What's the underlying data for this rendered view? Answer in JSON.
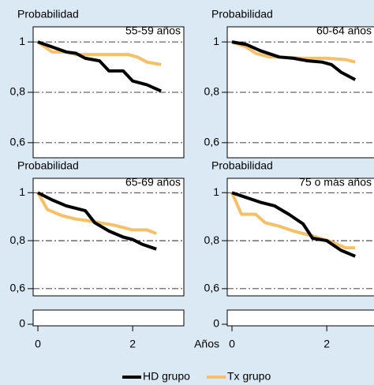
{
  "chart_data": [
    {
      "type": "line",
      "title": "Probabilidad",
      "subtitle": "55-59 años",
      "xlim": [
        -0.1,
        3.08
      ],
      "ylim": [
        0.54,
        1.06
      ],
      "yticks": [
        {
          "value": 0.6,
          "label": "0,6"
        },
        {
          "value": 0.8,
          "label": "0,8"
        },
        1
      ],
      "grid": true,
      "series": [
        {
          "name": "HD grupo",
          "color": "#000000",
          "x": [
            0,
            0.3,
            0.6,
            0.8,
            1,
            1.3,
            1.5,
            1.8,
            2,
            2.3,
            2.6
          ],
          "values": [
            1,
            0.98,
            0.96,
            0.955,
            0.935,
            0.925,
            0.885,
            0.885,
            0.845,
            0.83,
            0.805
          ]
        },
        {
          "name": "Tx grupo",
          "color": "#f5c06a",
          "x": [
            0,
            0.3,
            0.6,
            0.8,
            1,
            1.5,
            1.9,
            2.1,
            2.3,
            2.6
          ],
          "values": [
            1,
            0.96,
            0.96,
            0.95,
            0.95,
            0.95,
            0.95,
            0.94,
            0.92,
            0.91
          ]
        }
      ]
    },
    {
      "type": "line",
      "title": "Probabilidad",
      "subtitle": "60-64 años",
      "xlim": [
        -0.1,
        3.08
      ],
      "ylim": [
        0.54,
        1.06
      ],
      "yticks": [
        {
          "value": 0.6,
          "label": "0,6"
        },
        {
          "value": 0.8,
          "label": "0,8"
        },
        1
      ],
      "grid": true,
      "series": [
        {
          "name": "HD grupo",
          "color": "#000000",
          "x": [
            0,
            0.3,
            0.6,
            1,
            1.3,
            1.6,
            1.9,
            2.1,
            2.3,
            2.6
          ],
          "values": [
            1,
            0.99,
            0.965,
            0.94,
            0.935,
            0.925,
            0.92,
            0.91,
            0.88,
            0.85
          ]
        },
        {
          "name": "Tx grupo",
          "color": "#f5c06a",
          "x": [
            0,
            0.3,
            0.5,
            0.8,
            1,
            1.5,
            2,
            2.4,
            2.6
          ],
          "values": [
            1,
            0.98,
            0.955,
            0.94,
            0.94,
            0.935,
            0.935,
            0.93,
            0.92
          ]
        }
      ]
    },
    {
      "type": "line",
      "title": "Probabilidad",
      "subtitle": "65-69 años",
      "xlim": [
        -0.1,
        3.08
      ],
      "ylim": [
        0.57,
        1.06
      ],
      "xticks": [
        0,
        2
      ],
      "yticks": [
        0,
        {
          "value": 0.6,
          "label": "0,6"
        },
        {
          "value": 0.8,
          "label": "0,8"
        },
        1
      ],
      "grid": true,
      "series": [
        {
          "name": "HD grupo",
          "color": "#000000",
          "x": [
            0,
            0.3,
            0.6,
            1,
            1.2,
            1.5,
            1.8,
            2,
            2.2,
            2.5
          ],
          "values": [
            1,
            0.97,
            0.945,
            0.925,
            0.875,
            0.84,
            0.815,
            0.805,
            0.785,
            0.765
          ]
        },
        {
          "name": "Tx grupo",
          "color": "#f5c06a",
          "x": [
            0,
            0.2,
            0.5,
            0.8,
            1,
            1.3,
            1.6,
            2,
            2.3,
            2.5
          ],
          "values": [
            1,
            0.93,
            0.905,
            0.89,
            0.885,
            0.875,
            0.865,
            0.845,
            0.845,
            0.83
          ]
        }
      ]
    },
    {
      "type": "line",
      "title": "Probabilidad",
      "subtitle": "75 o más años",
      "xlabel": "Años",
      "xlim": [
        -0.1,
        3.08
      ],
      "ylim": [
        0.57,
        1.06
      ],
      "xticks": [
        0,
        2
      ],
      "yticks": [
        0,
        {
          "value": 0.6,
          "label": "0,6"
        },
        {
          "value": 0.8,
          "label": "0,8"
        },
        1
      ],
      "grid": true,
      "series": [
        {
          "name": "HD grupo",
          "color": "#000000",
          "x": [
            0,
            0.3,
            0.6,
            0.9,
            1.2,
            1.5,
            1.7,
            2,
            2.3,
            2.6
          ],
          "values": [
            1,
            0.98,
            0.96,
            0.945,
            0.91,
            0.87,
            0.81,
            0.8,
            0.76,
            0.735
          ]
        },
        {
          "name": "Tx grupo",
          "color": "#f5c06a",
          "x": [
            0,
            0.2,
            0.5,
            0.7,
            1,
            1.3,
            1.7,
            2.1,
            2.4,
            2.6
          ],
          "values": [
            1,
            0.91,
            0.91,
            0.875,
            0.86,
            0.84,
            0.82,
            0.795,
            0.77,
            0.77
          ]
        }
      ]
    }
  ]
}
